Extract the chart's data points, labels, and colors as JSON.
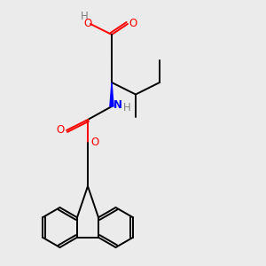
{
  "background_color": "#ebebeb",
  "atom_colors": {
    "C": "#000000",
    "O": "#ff0000",
    "N": "#0000ff",
    "H": "#808080"
  },
  "figsize": [
    3.0,
    3.0
  ],
  "dpi": 100,
  "lw": 1.4,
  "fs": 8.5,
  "fs_small": 7.5
}
